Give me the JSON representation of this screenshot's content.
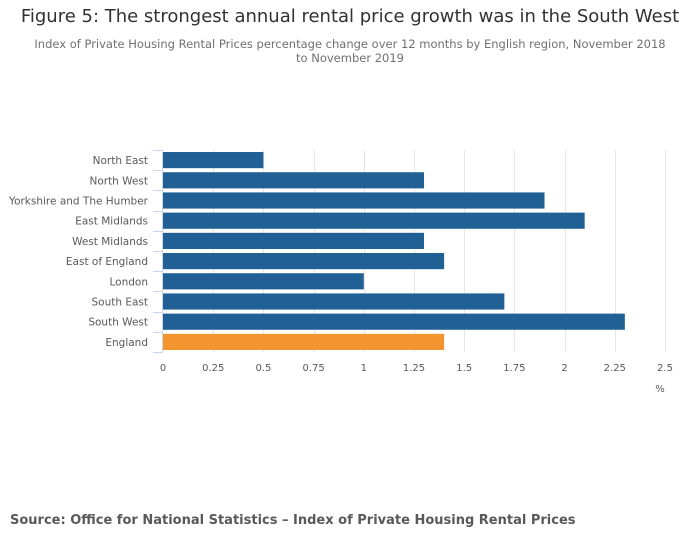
{
  "chart_data": {
    "type": "bar",
    "orientation": "horizontal",
    "title": "Figure 5: The strongest annual rental price growth was in the South West",
    "subtitle": "Index of Private Housing Rental Prices percentage change over 12 months by English region, November 2018 to November 2019",
    "categories": [
      "North East",
      "North West",
      "Yorkshire and The Humber",
      "East Midlands",
      "West Midlands",
      "East of England",
      "London",
      "South East",
      "South West",
      "England"
    ],
    "values": [
      0.5,
      1.3,
      1.9,
      2.1,
      1.3,
      1.4,
      1.0,
      1.7,
      2.3,
      1.4
    ],
    "highlight": [
      "England"
    ],
    "colors": {
      "default": "#206095",
      "highlight": "#f39431",
      "grid": "#e6e6e6",
      "axis": "#ccd6eb"
    },
    "xlabel": "%",
    "ylabel": "",
    "xlim": [
      0,
      2.5
    ],
    "xticks": [
      0,
      0.25,
      0.5,
      0.75,
      1,
      1.25,
      1.5,
      1.75,
      2,
      2.25,
      2.5
    ],
    "xtick_labels": [
      "0",
      "0.25",
      "0.5",
      "0.75",
      "1",
      "1.25",
      "1.5",
      "1.75",
      "2",
      "2.25",
      "2.5"
    ],
    "grid": true,
    "legend": "none"
  },
  "source": "Source: Office for National Statistics – Index of Private Housing Rental Prices"
}
